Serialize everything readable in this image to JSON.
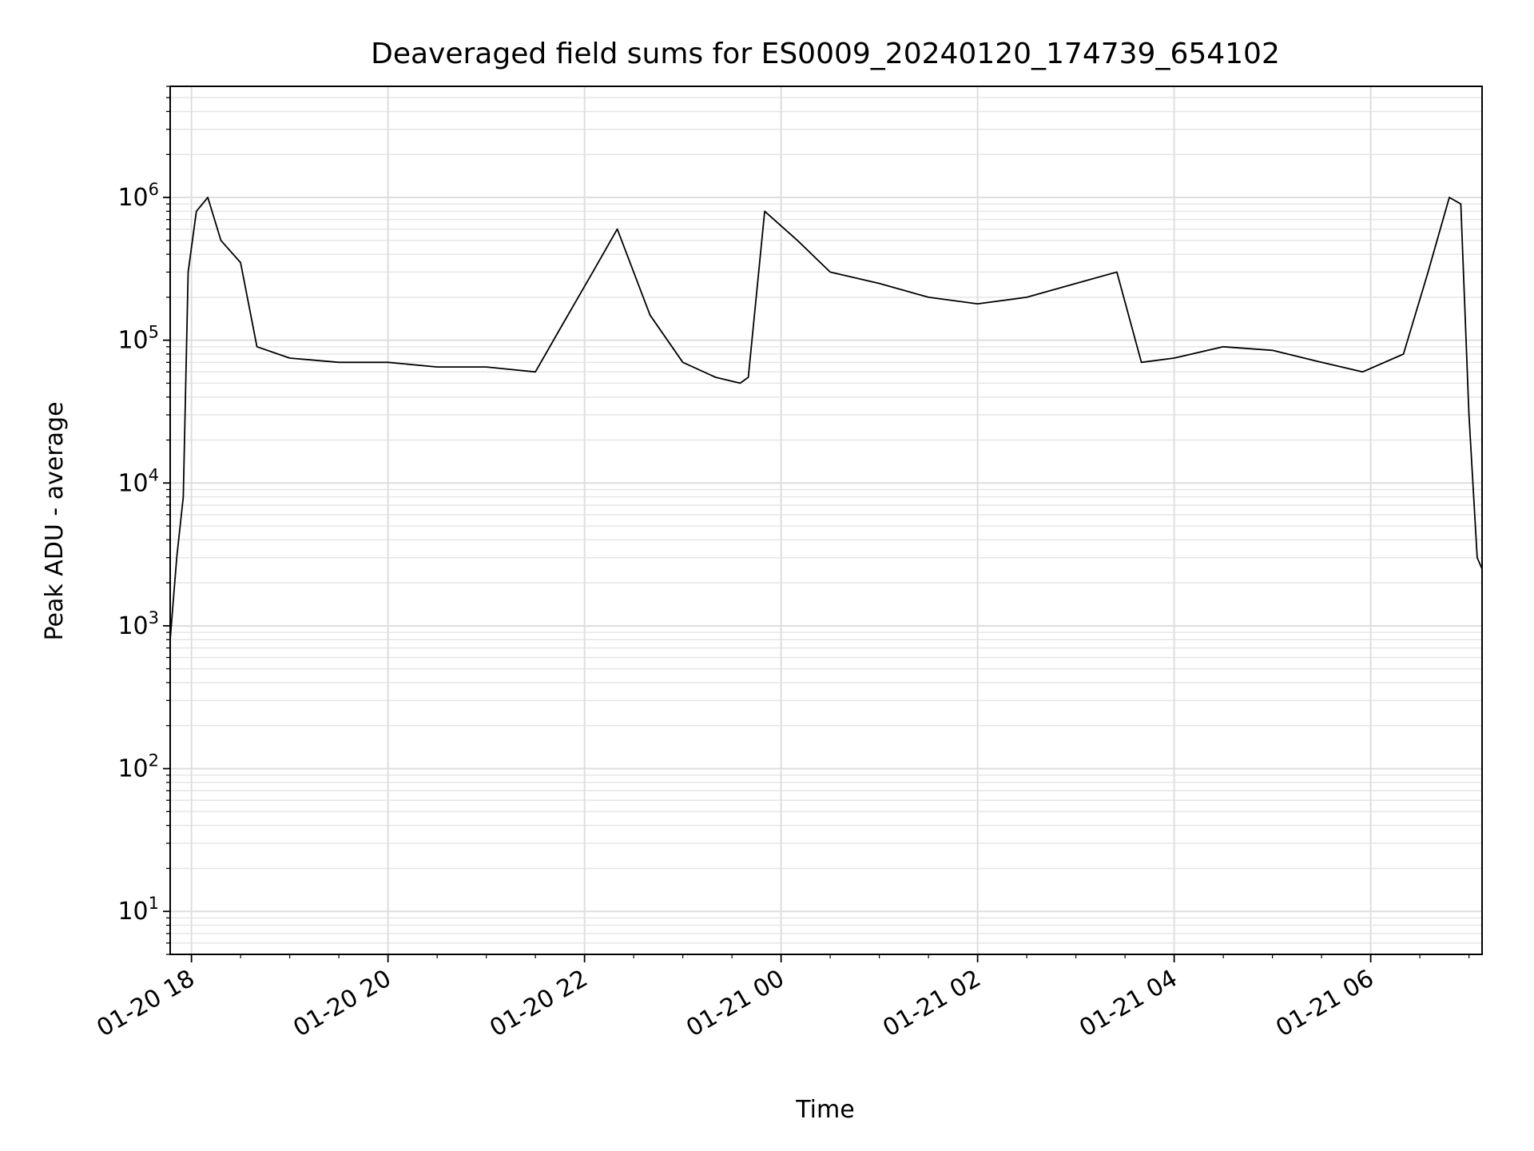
{
  "chart_data": {
    "type": "line",
    "title": "Deaveraged field sums for ES0009_20240120_174739_654102",
    "xlabel": "Time",
    "ylabel": "Peak ADU - average",
    "xscale": "time",
    "yscale": "log",
    "xlim": [
      "2024-01-20 17:47",
      "2024-01-21 07:08"
    ],
    "ylim": [
      5,
      6000000
    ],
    "grid": "both (major and minor)",
    "legend": "none",
    "x_ticks": [
      "01-20 18",
      "01-20 20",
      "01-20 22",
      "01-21 00",
      "01-21 02",
      "01-21 04",
      "01-21 06"
    ],
    "y_ticks": [
      {
        "base": "10",
        "exp": "1"
      },
      {
        "base": "10",
        "exp": "2"
      },
      {
        "base": "10",
        "exp": "3"
      },
      {
        "base": "10",
        "exp": "4"
      },
      {
        "base": "10",
        "exp": "5"
      },
      {
        "base": "10",
        "exp": "6"
      }
    ],
    "series": [
      {
        "color": "#000000",
        "x": [
          "2024-01-20 17:47",
          "2024-01-20 17:51",
          "2024-01-20 17:55",
          "2024-01-20 17:58",
          "2024-01-20 18:03",
          "2024-01-20 18:10",
          "2024-01-20 18:18",
          "2024-01-20 18:30",
          "2024-01-20 18:40",
          "2024-01-20 19:00",
          "2024-01-20 19:30",
          "2024-01-20 20:00",
          "2024-01-20 20:30",
          "2024-01-20 21:00",
          "2024-01-20 21:30",
          "2024-01-20 21:45",
          "2024-01-20 22:05",
          "2024-01-20 22:20",
          "2024-01-20 22:40",
          "2024-01-20 23:00",
          "2024-01-20 23:20",
          "2024-01-20 23:35",
          "2024-01-20 23:40",
          "2024-01-20 23:50",
          "2024-01-21 00:10",
          "2024-01-21 00:30",
          "2024-01-21 01:00",
          "2024-01-21 01:30",
          "2024-01-21 02:00",
          "2024-01-21 02:30",
          "2024-01-21 03:00",
          "2024-01-21 03:25",
          "2024-01-21 03:40",
          "2024-01-21 04:00",
          "2024-01-21 04:30",
          "2024-01-21 05:00",
          "2024-01-21 05:30",
          "2024-01-21 05:55",
          "2024-01-21 06:20",
          "2024-01-21 06:35",
          "2024-01-21 06:48",
          "2024-01-21 06:55",
          "2024-01-21 07:00",
          "2024-01-21 07:05",
          "2024-01-21 07:08"
        ],
        "y": [
          800,
          3000,
          8000,
          300000,
          800000,
          1000000,
          500000,
          350000,
          90000,
          75000,
          70000,
          70000,
          65000,
          65000,
          60000,
          120000,
          300000,
          600000,
          150000,
          70000,
          55000,
          50000,
          55000,
          800000,
          500000,
          300000,
          250000,
          200000,
          180000,
          200000,
          250000,
          300000,
          70000,
          75000,
          90000,
          85000,
          70000,
          60000,
          80000,
          300000,
          1000000,
          900000,
          30000,
          3000,
          2500
        ]
      }
    ]
  }
}
